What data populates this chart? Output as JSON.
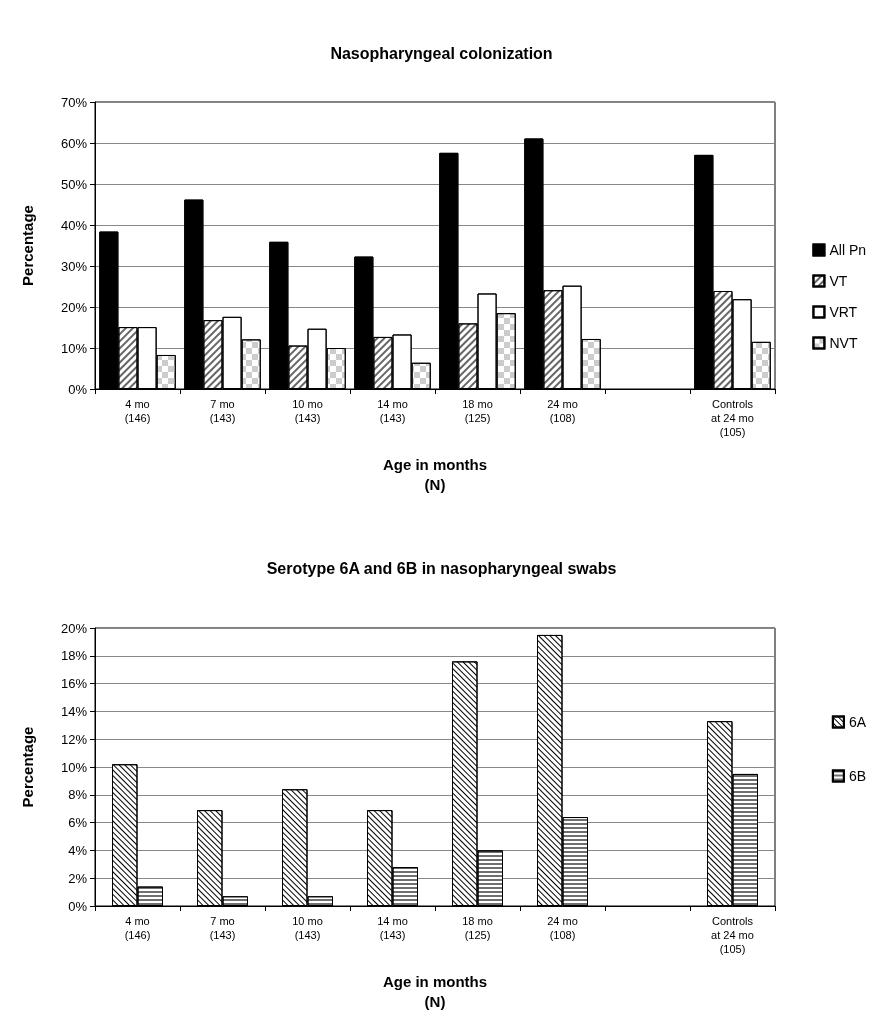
{
  "chart_data": [
    {
      "type": "bar",
      "title": "Nasopharyngeal colonization",
      "xlabel": "Age in months\n(N)",
      "ylabel": "Percentage",
      "categories": [
        "4 mo\n(146)",
        "7 mo\n(143)",
        "10 mo\n(143)",
        "14 mo\n(143)",
        "18 mo\n(125)",
        "24 mo\n(108)",
        null,
        "Controls\nat 24 mo\n(105)"
      ],
      "series": [
        {
          "name": "All Pn",
          "color": "#000000",
          "values": [
            38.4,
            46.2,
            35.9,
            32.3,
            57.6,
            61.1,
            null,
            57.1
          ]
        },
        {
          "name": "VT",
          "color": "#ffffff",
          "values": [
            15.1,
            16.8,
            10.6,
            12.7,
            16.0,
            24.1,
            null,
            23.9
          ]
        },
        {
          "name": "VRT",
          "color": "#ffffff",
          "values": [
            15.1,
            17.6,
            14.7,
            13.3,
            23.3,
            25.2,
            null,
            21.9
          ]
        },
        {
          "name": "NVT",
          "color": "#ffffff",
          "values": [
            8.3,
            12.1,
            10.0,
            6.4,
            18.5,
            12.2,
            null,
            11.5
          ]
        }
      ],
      "ylim": [
        0,
        70
      ],
      "yticks": [
        {
          "value": 0,
          "label": "0%"
        },
        {
          "value": 10,
          "label": "10%"
        },
        {
          "value": 20,
          "label": "20%"
        },
        {
          "value": 30,
          "label": "30%"
        },
        {
          "value": 40,
          "label": "40%"
        },
        {
          "value": 50,
          "label": "50%"
        },
        {
          "value": 60,
          "label": "60%"
        },
        {
          "value": 70,
          "label": "70%"
        }
      ],
      "grid": "y",
      "legend": "right"
    },
    {
      "type": "bar",
      "title": "Serotype 6A and 6B in nasopharyngeal swabs",
      "xlabel": "Age in months\n(N)",
      "ylabel": "Percentage",
      "categories": [
        "4 mo\n(146)",
        "7 mo\n(143)",
        "10 mo\n(143)",
        "14 mo\n(143)",
        "18 mo\n(125)",
        "24 mo\n(108)",
        null,
        "Controls\nat 24 mo\n(105)"
      ],
      "series": [
        {
          "name": "6A",
          "color": "#ffffff",
          "values": [
            10.2,
            6.9,
            8.4,
            6.9,
            17.6,
            19.5,
            null,
            13.3
          ]
        },
        {
          "name": "6B",
          "color": "#ffffff",
          "values": [
            1.4,
            0.7,
            0.7,
            2.8,
            4.0,
            6.4,
            null,
            9.5
          ]
        }
      ],
      "ylim": [
        0,
        20
      ],
      "yticks": [
        {
          "value": 0,
          "label": "0%"
        },
        {
          "value": 2,
          "label": "2%"
        },
        {
          "value": 4,
          "label": "4%"
        },
        {
          "value": 6,
          "label": "6%"
        },
        {
          "value": 8,
          "label": "8%"
        },
        {
          "value": 10,
          "label": "10%"
        },
        {
          "value": 12,
          "label": "12%"
        },
        {
          "value": 14,
          "label": "14%"
        },
        {
          "value": 16,
          "label": "16%"
        },
        {
          "value": 18,
          "label": "18%"
        },
        {
          "value": 20,
          "label": "20%"
        }
      ],
      "grid": "y",
      "legend": "right"
    }
  ]
}
